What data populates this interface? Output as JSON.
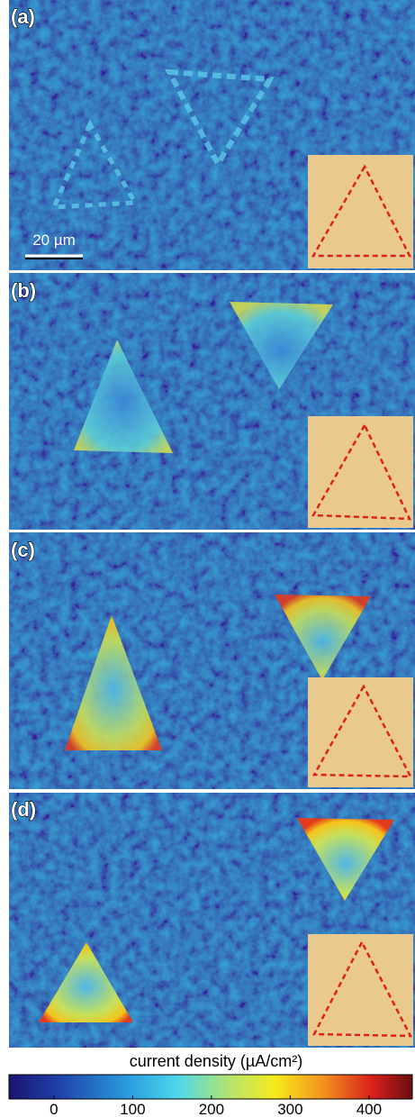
{
  "panels": [
    {
      "label": "(a)"
    },
    {
      "label": "(b)"
    },
    {
      "label": "(c)"
    },
    {
      "label": "(d)"
    }
  ],
  "scale_bar": "20 µm",
  "colorbar": {
    "label": "current density (µA/cm²)",
    "range": [
      -57,
      455
    ],
    "ticks": [
      0,
      100,
      200,
      300,
      400
    ]
  }
}
